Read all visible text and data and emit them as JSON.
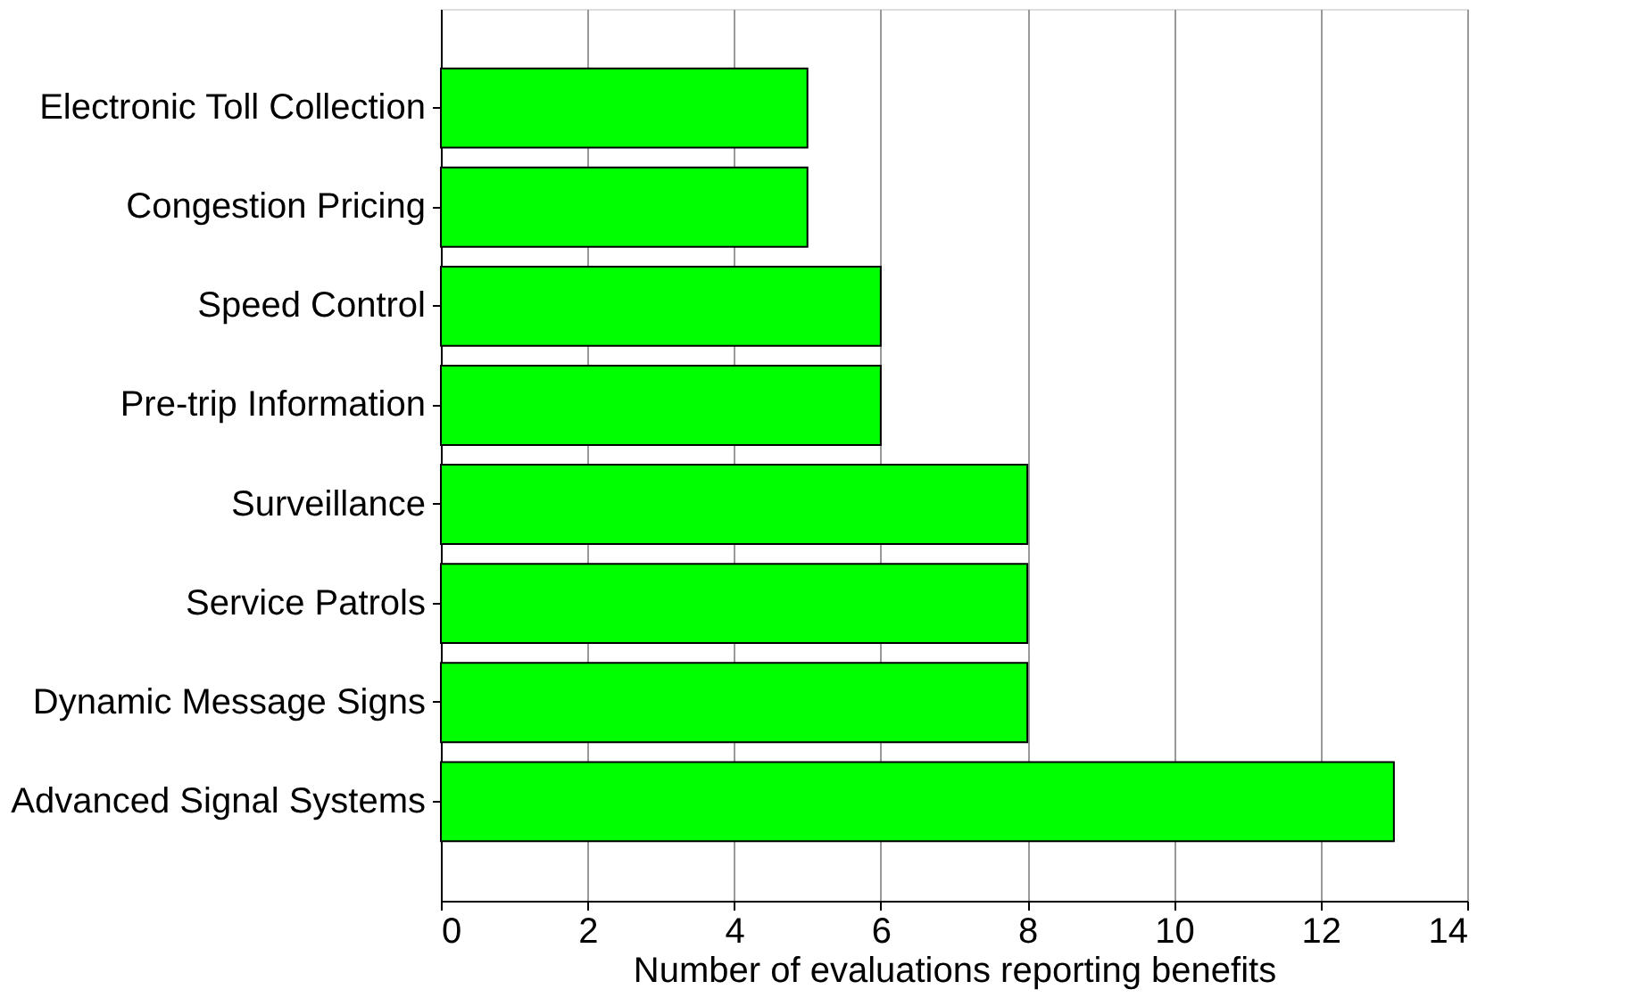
{
  "chart_data": {
    "type": "bar",
    "orientation": "horizontal",
    "xlabel": "Number of evaluations reporting benefits",
    "categories": [
      "Electronic Toll Collection",
      "Congestion Pricing",
      "Speed Control",
      "Pre-trip Information",
      "Surveillance",
      "Service Patrols",
      "Dynamic Message Signs",
      "Advanced Signal Systems"
    ],
    "values": [
      5,
      5,
      6,
      6,
      8,
      8,
      8,
      13
    ],
    "color": "#00ff00",
    "xlim": [
      0,
      14
    ],
    "xticks": [
      0,
      2,
      4,
      6,
      8,
      10,
      12,
      14
    ],
    "grid": "x"
  }
}
